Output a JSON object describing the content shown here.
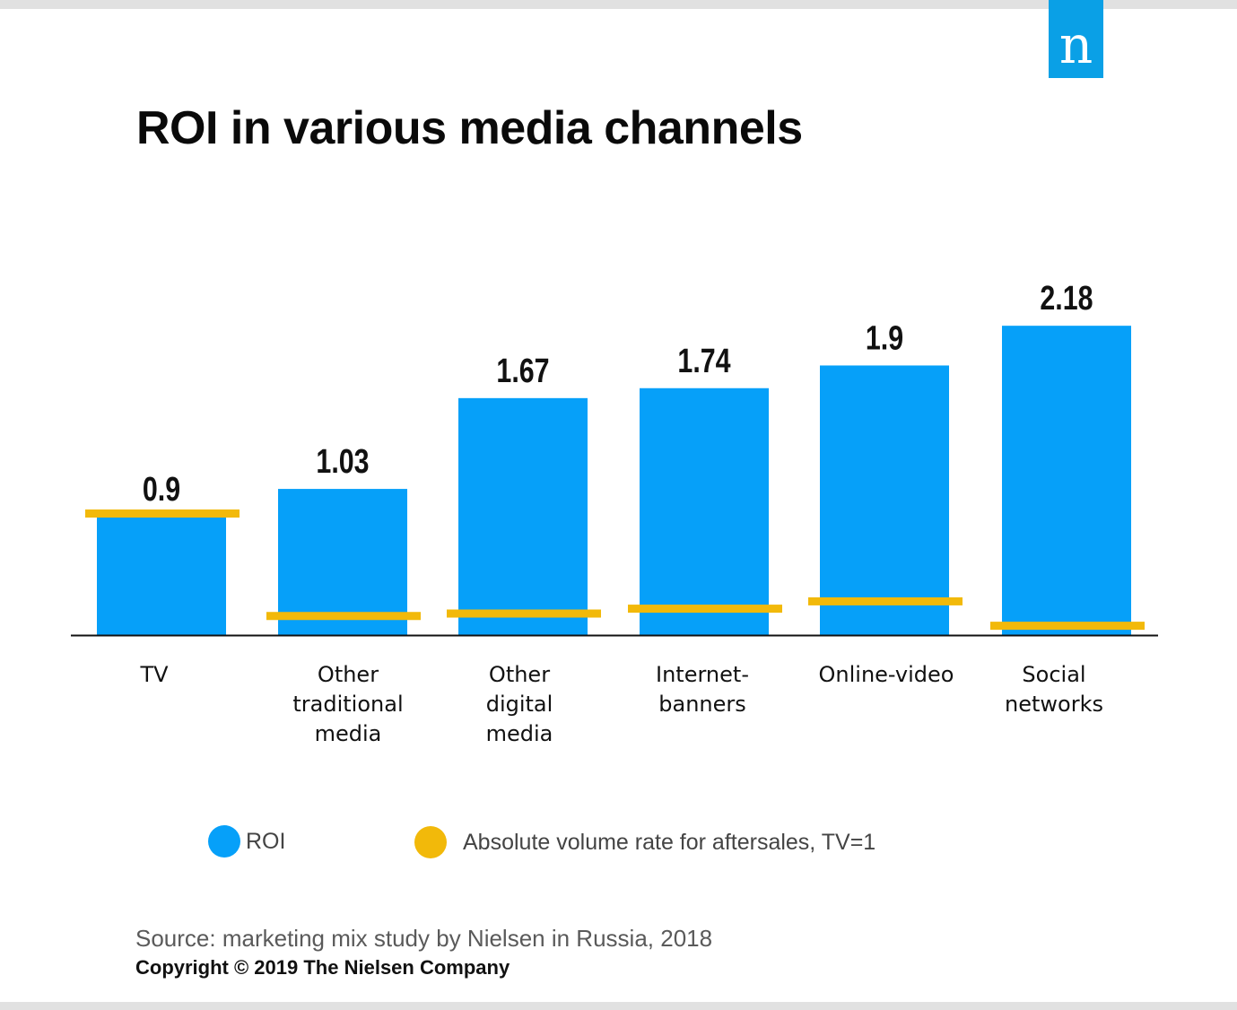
{
  "header": {
    "logo_text": "n",
    "title": "ROI in various media channels"
  },
  "colors": {
    "roi": "#06a0f9",
    "aftersales": "#f2b90a",
    "axis": "#111111",
    "logo_bg": "#0aa0e6"
  },
  "chart_data": {
    "type": "bar",
    "title": "ROI in various media channels",
    "xlabel": "",
    "ylabel": "",
    "categories": [
      "TV",
      "Other traditional media",
      "Other digital media",
      "Internet-banners",
      "Online-video",
      "Social networks"
    ],
    "category_lines": [
      [
        "TV"
      ],
      [
        "Other",
        "traditional",
        "media"
      ],
      [
        "Other",
        "digital",
        "media"
      ],
      [
        "Internet-",
        "banners"
      ],
      [
        "Online-video"
      ],
      [
        "Social",
        "networks"
      ]
    ],
    "series": [
      {
        "name": "ROI",
        "type": "bar",
        "values": [
          0.9,
          1.03,
          1.67,
          1.74,
          1.9,
          2.18
        ],
        "labels": [
          "0.9",
          "1.03",
          "1.67",
          "1.74",
          "1.9",
          "2.18"
        ]
      },
      {
        "name": "Absolute volume rate for aftersales, TV=1",
        "type": "marker-line",
        "values": [
          1.0,
          0.16,
          0.18,
          0.22,
          0.28,
          0.08
        ]
      }
    ],
    "ylim": [
      0,
      2.2
    ],
    "grid": false,
    "legend": "bottom"
  },
  "legend": {
    "items": [
      {
        "label": "ROI"
      },
      {
        "label": "Absolute volume rate for aftersales, TV=1"
      }
    ]
  },
  "footer": {
    "source": "Source: marketing mix study by Nielsen in Russia, 2018",
    "copyright": "Copyright © 2019 The Nielsen Company"
  }
}
